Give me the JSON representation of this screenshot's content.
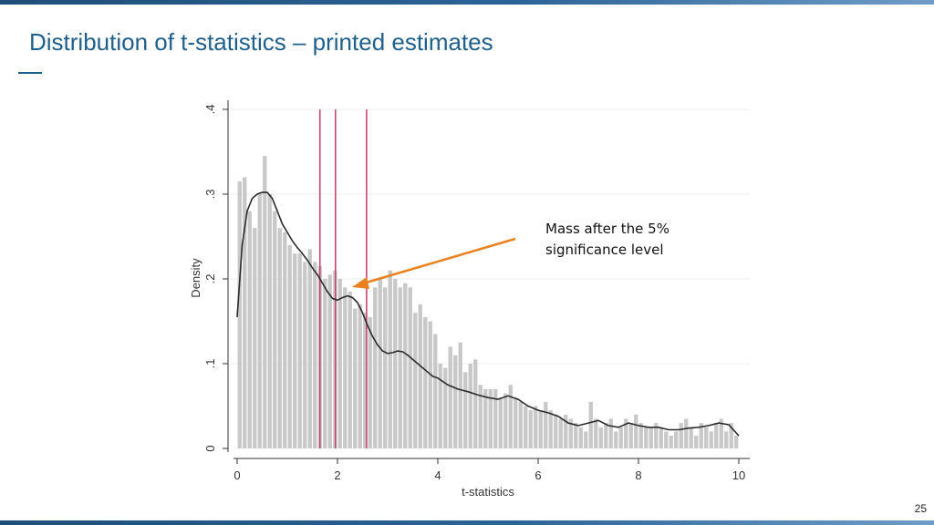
{
  "slide": {
    "title": "Distribution of t-statistics – printed estimates",
    "page_number": "25"
  },
  "annotation": {
    "line1": "Mass after the 5%",
    "line2": "significance level",
    "arrow_color": "#e8821e"
  },
  "colors": {
    "accent": "#1f5f8b",
    "bar": "#c8c8c8",
    "density_line": "#2b2b2b",
    "threshold_lines": "#c9476f"
  },
  "chart_data": {
    "type": "bar",
    "title": "",
    "xlabel": "t-statistics",
    "ylabel": "Density",
    "xlim": [
      0,
      10
    ],
    "ylim": [
      0,
      0.4
    ],
    "x_ticks": [
      "0",
      "2",
      "4",
      "6",
      "8",
      "10"
    ],
    "y_ticks": [
      "0",
      ".1",
      ".2",
      ".3",
      ".4"
    ],
    "grid": true,
    "bin_width": 0.1,
    "bin_starts": [
      0.0,
      0.1,
      0.2,
      0.3,
      0.4,
      0.5,
      0.6,
      0.7,
      0.8,
      0.9,
      1.0,
      1.1,
      1.2,
      1.3,
      1.4,
      1.5,
      1.6,
      1.7,
      1.8,
      1.9,
      2.0,
      2.1,
      2.2,
      2.3,
      2.4,
      2.5,
      2.6,
      2.7,
      2.8,
      2.9,
      3.0,
      3.1,
      3.2,
      3.3,
      3.4,
      3.5,
      3.6,
      3.7,
      3.8,
      3.9,
      4.0,
      4.1,
      4.2,
      4.3,
      4.4,
      4.5,
      4.6,
      4.7,
      4.8,
      4.9,
      5.0,
      5.1,
      5.2,
      5.3,
      5.4,
      5.5,
      5.6,
      5.7,
      5.8,
      5.9,
      6.0,
      6.1,
      6.2,
      6.3,
      6.4,
      6.5,
      6.6,
      6.7,
      6.8,
      6.9,
      7.0,
      7.1,
      7.2,
      7.3,
      7.4,
      7.5,
      7.6,
      7.7,
      7.8,
      7.9,
      8.0,
      8.1,
      8.2,
      8.3,
      8.4,
      8.5,
      8.6,
      8.7,
      8.8,
      8.9,
      9.0,
      9.1,
      9.2,
      9.3,
      9.4,
      9.5,
      9.6,
      9.7,
      9.8,
      9.9
    ],
    "bar_values": [
      0.315,
      0.32,
      0.28,
      0.26,
      0.3,
      0.345,
      0.3,
      0.28,
      0.26,
      0.255,
      0.24,
      0.23,
      0.23,
      0.22,
      0.235,
      0.22,
      0.215,
      0.2,
      0.205,
      0.21,
      0.2,
      0.19,
      0.185,
      0.165,
      0.17,
      0.16,
      0.155,
      0.19,
      0.2,
      0.19,
      0.21,
      0.2,
      0.19,
      0.195,
      0.19,
      0.16,
      0.17,
      0.155,
      0.15,
      0.135,
      0.1,
      0.095,
      0.12,
      0.11,
      0.125,
      0.09,
      0.1,
      0.105,
      0.075,
      0.07,
      0.07,
      0.07,
      0.06,
      0.065,
      0.075,
      0.06,
      0.055,
      0.05,
      0.045,
      0.05,
      0.045,
      0.055,
      0.045,
      0.04,
      0.035,
      0.04,
      0.035,
      0.03,
      0.025,
      0.02,
      0.055,
      0.035,
      0.025,
      0.03,
      0.035,
      0.02,
      0.025,
      0.035,
      0.03,
      0.04,
      0.03,
      0.025,
      0.025,
      0.03,
      0.025,
      0.02,
      0.015,
      0.02,
      0.03,
      0.035,
      0.025,
      0.015,
      0.03,
      0.025,
      0.02,
      0.03,
      0.035,
      0.02,
      0.03,
      0.015
    ],
    "density_curve": {
      "x": [
        0.0,
        0.1,
        0.2,
        0.3,
        0.4,
        0.5,
        0.6,
        0.7,
        0.8,
        0.9,
        1.0,
        1.1,
        1.2,
        1.3,
        1.4,
        1.5,
        1.6,
        1.7,
        1.8,
        1.9,
        2.0,
        2.1,
        2.2,
        2.3,
        2.4,
        2.5,
        2.6,
        2.7,
        2.8,
        2.9,
        3.0,
        3.1,
        3.2,
        3.3,
        3.4,
        3.5,
        3.6,
        3.7,
        3.8,
        3.9,
        4.0,
        4.2,
        4.4,
        4.6,
        4.8,
        5.0,
        5.2,
        5.4,
        5.6,
        5.8,
        6.0,
        6.2,
        6.4,
        6.6,
        6.8,
        7.0,
        7.2,
        7.4,
        7.6,
        7.8,
        8.0,
        8.2,
        8.4,
        8.6,
        8.8,
        9.0,
        9.2,
        9.4,
        9.6,
        9.8,
        10.0
      ],
      "y": [
        0.155,
        0.24,
        0.28,
        0.295,
        0.3,
        0.302,
        0.302,
        0.295,
        0.28,
        0.265,
        0.255,
        0.245,
        0.237,
        0.23,
        0.222,
        0.213,
        0.205,
        0.195,
        0.185,
        0.177,
        0.175,
        0.178,
        0.18,
        0.178,
        0.172,
        0.16,
        0.145,
        0.132,
        0.122,
        0.115,
        0.112,
        0.113,
        0.115,
        0.114,
        0.11,
        0.105,
        0.1,
        0.095,
        0.09,
        0.085,
        0.083,
        0.075,
        0.07,
        0.067,
        0.063,
        0.06,
        0.058,
        0.062,
        0.058,
        0.05,
        0.045,
        0.042,
        0.038,
        0.03,
        0.027,
        0.03,
        0.033,
        0.027,
        0.025,
        0.03,
        0.027,
        0.025,
        0.025,
        0.022,
        0.022,
        0.024,
        0.025,
        0.027,
        0.03,
        0.028,
        0.015
      ]
    },
    "reference_lines_x": [
      1.65,
      1.96,
      2.58
    ]
  }
}
